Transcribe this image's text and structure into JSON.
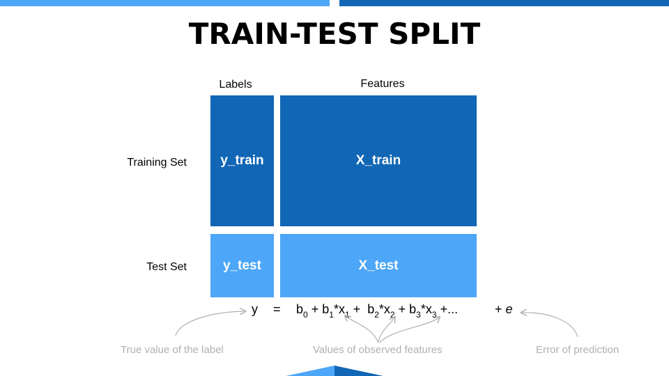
{
  "colors": {
    "dark_blue": "#1166b5",
    "light_blue": "#4da6f7",
    "caption_gray": "#b0b0b0"
  },
  "title": "TRAIN-TEST SPLIT",
  "headers": {
    "labels": "Labels",
    "features": "Features"
  },
  "rows": {
    "training": "Training Set",
    "test": "Test Set"
  },
  "blocks": {
    "y_train": "y_train",
    "x_train": "X_train",
    "y_test": "y_test",
    "x_test": "X_test"
  },
  "equation": {
    "y": "y",
    "equals": "=",
    "b": "b",
    "x": "x",
    "plus": "+",
    "times": "*",
    "ellipsis": "+...",
    "error_plus": "+",
    "error": "e",
    "sub0": "0",
    "sub1": "1",
    "sub2": "2",
    "sub3": "3"
  },
  "captions": {
    "true_value": "True value of the label",
    "observed": "Values of observed features",
    "error": "Error of prediction"
  }
}
